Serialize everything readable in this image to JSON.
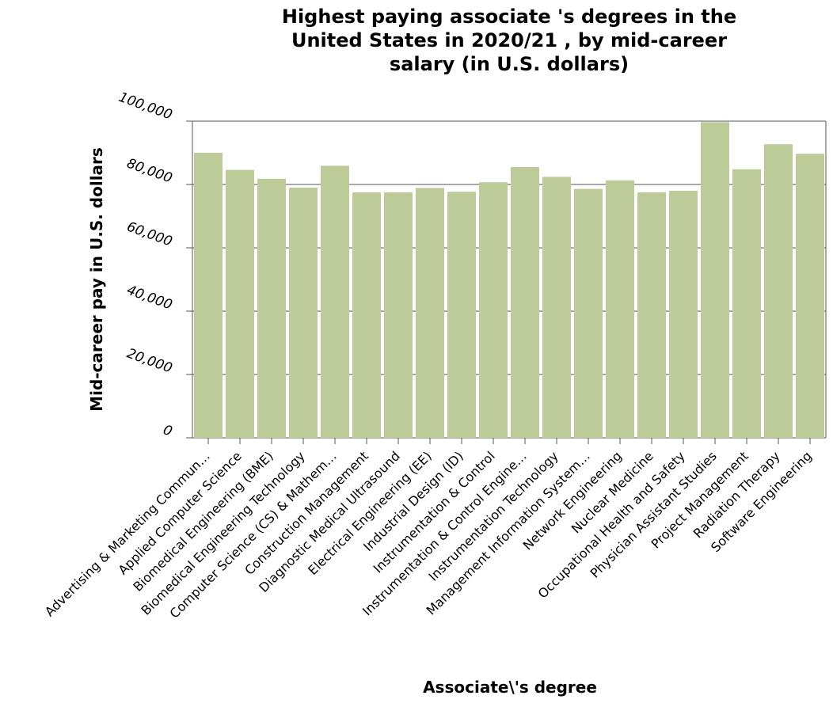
{
  "chart_data": {
    "type": "bar",
    "title": "Highest paying associate 's degrees in the United States in 2020/21 , by mid-career salary (in U.S. dollars)",
    "title_lines": [
      "Highest paying associate 's degrees in the",
      "United States in 2020/21 , by mid-career",
      "salary (in U.S. dollars)"
    ],
    "xlabel": "Associate\\'s degree",
    "ylabel": "Mid-career pay in U.S. dollars",
    "ylim": [
      0,
      100000
    ],
    "yticks": [
      0,
      20000,
      40000,
      60000,
      80000,
      100000
    ],
    "ytick_labels": [
      "0",
      "20,000",
      "40,000",
      "60,000",
      "80,000",
      "100,000"
    ],
    "grid": "horizontal",
    "bar_color": "#bccb98",
    "categories": [
      "Advertising & Marketing Commun…",
      "Applied Computer Science",
      "Biomedical Engineering (BME)",
      "Biomedical Engineering Technology",
      "Computer Science (CS) & Mathem…",
      "Construction Management",
      "Diagnostic Medical Ultrasound",
      "Electrical Engineering (EE)",
      "Industrial Design (ID)",
      "Instrumentation & Control",
      "Instrumentation & Control Engine…",
      "Instrumentation Technology",
      "Management Information System…",
      "Network Engineering",
      "Nuclear Medicine",
      "Occupational Health and Safety",
      "Physician Assistant Studies",
      "Project Management",
      "Radiation Therapy",
      "Software Engineering"
    ],
    "values": [
      90000,
      84600,
      81800,
      79000,
      85900,
      77500,
      77500,
      78900,
      77700,
      80700,
      85500,
      82400,
      78600,
      81300,
      77500,
      78000,
      99700,
      84800,
      92700,
      89700
    ]
  }
}
